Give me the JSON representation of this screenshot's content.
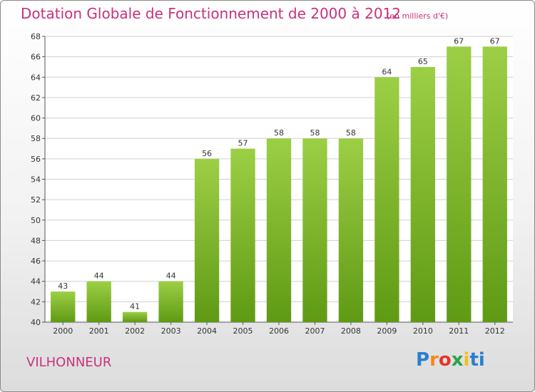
{
  "title": "Dotation Globale de Fonctionnement de 2000 à 2012",
  "subtitle": "(en milliers d'€)",
  "commune": "VILHONNEUR",
  "logo": {
    "text": "Proxiti",
    "letters": [
      "P",
      "r",
      "o",
      "x",
      "i",
      "ti"
    ]
  },
  "colors": {
    "title": "#c8327a",
    "bar_top": "#9ccf45",
    "bar_bottom": "#5f9a14",
    "grid": "#d0d0d0"
  },
  "chart_data": {
    "type": "bar",
    "title": "Dotation Globale de Fonctionnement de 2000 à 2012",
    "subtitle": "(en milliers d'€)",
    "xlabel": "",
    "ylabel": "",
    "categories": [
      "2000",
      "2001",
      "2002",
      "2003",
      "2004",
      "2005",
      "2006",
      "2007",
      "2008",
      "2009",
      "2010",
      "2011",
      "2012"
    ],
    "values": [
      43,
      44,
      41,
      44,
      56,
      57,
      58,
      58,
      58,
      64,
      65,
      67,
      67
    ],
    "ylim": [
      40,
      68
    ],
    "yticks": [
      40,
      42,
      44,
      46,
      48,
      50,
      52,
      54,
      56,
      58,
      60,
      62,
      64,
      66,
      68
    ],
    "grid": true,
    "legend": "none"
  }
}
